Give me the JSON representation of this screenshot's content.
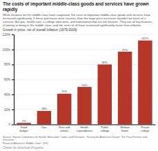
{
  "chart_data": {
    "type": "bar",
    "title": "The costs of important middle-class goods and services have grown rapidly",
    "subtitle": "While incomes for the middle class have stagnated, the costs of important middle-class goods and services have increased significantly. If these purchases were luxuries, then the large price increases wouldn't be much of a concern. But gas, health care, a college education, and homeownership are not luxuries. They are all key features of joining or being in the middle class, and the costs of all have increased significantly faster than inflation.",
    "y_label": "Growth in price, net of overall inflation (1979-2009)",
    "categories": [
      "Food\nbudget",
      "Gas",
      "Rent and\nutilities",
      "Health\nexpenditures",
      "Public\ncollege",
      "Median\nhome",
      "Private\ncollege"
    ],
    "values": [
      2,
      18,
      41,
      50,
      80,
      97,
      112
    ],
    "value_labels": [
      "2%",
      "18%",
      "41%",
      "50%",
      "80%",
      "97%",
      "112%"
    ],
    "data_labels": true,
    "color": "#b5372a",
    "ylim": [
      0,
      120
    ],
    "yticks": [
      0,
      {
        "value": 20,
        "label": "20%"
      },
      {
        "value": 40,
        "label": "40%"
      },
      {
        "value": 60,
        "label": "60%"
      },
      {
        "value": 80,
        "label": "80%"
      },
      {
        "value": 100,
        "label": "100%"
      },
      {
        "value": 120,
        "label": "120%"
      }
    ],
    "grid": true,
    "source": "Source: Senate Committee on Health, Education, Labor, and Pensions, \"Saving the American Dream: The Past,Present, and Uncertain\nFuture of America's Middle Class\" 2011.",
    "footer": "Center for American Progress"
  }
}
